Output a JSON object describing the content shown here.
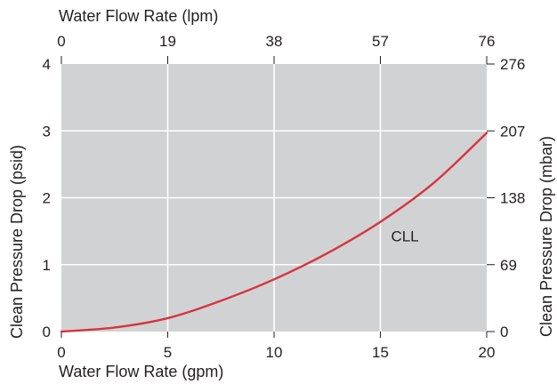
{
  "chart_data": {
    "type": "line",
    "xlabel": "Water Flow Rate (gpm)",
    "ylabel": "Clean Pressure Drop (psid)",
    "x2label": "Water Flow Rate (lpm)",
    "y2label": "Clean Pressure Drop (mbar)",
    "xlim": [
      0,
      20
    ],
    "ylim": [
      0,
      4
    ],
    "xticks": [
      "0",
      "5",
      "10",
      "15",
      "20"
    ],
    "yticks": [
      "0",
      "1",
      "2",
      "3",
      "4"
    ],
    "x2ticks": [
      "0",
      "19",
      "38",
      "57",
      "76"
    ],
    "y2ticks": [
      "0",
      "69",
      "138",
      "207",
      "276"
    ],
    "grid": true,
    "series": [
      {
        "name": "CLL",
        "color": "#d7343f",
        "x": [
          0,
          2.5,
          5,
          7.5,
          10,
          12.5,
          15,
          17.5,
          20
        ],
        "y": [
          0,
          0.06,
          0.2,
          0.46,
          0.78,
          1.17,
          1.64,
          2.22,
          2.97
        ]
      }
    ]
  },
  "colors": {
    "plot_background": "#d1d2d3",
    "grid": "#ffffff",
    "text": "#231f20"
  }
}
